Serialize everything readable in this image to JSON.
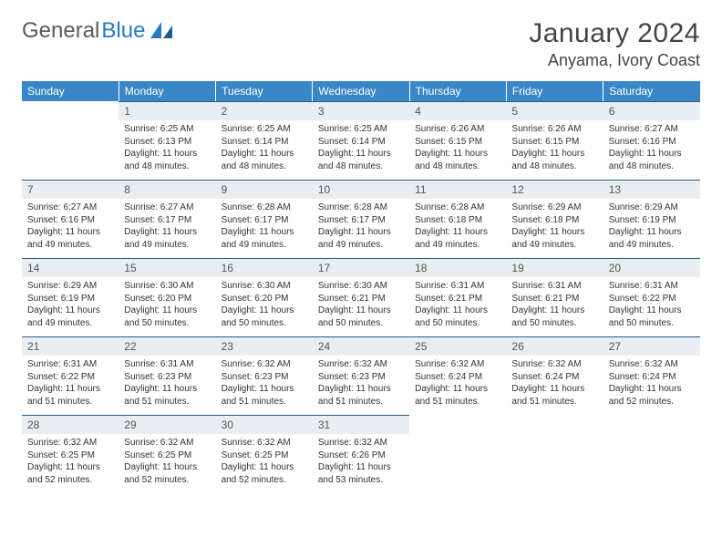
{
  "brand": {
    "word1": "General",
    "word2": "Blue"
  },
  "title": "January 2024",
  "location": "Anyama, Ivory Coast",
  "colors": {
    "header_bg": "#3a87c7",
    "daynum_bg": "#e9eef2",
    "daynum_border": "#2a5c8a",
    "brand_blue": "#2a7ac0"
  },
  "weekdays": [
    "Sunday",
    "Monday",
    "Tuesday",
    "Wednesday",
    "Thursday",
    "Friday",
    "Saturday"
  ],
  "weeks": [
    [
      {
        "n": "",
        "sr": "",
        "ss": "",
        "dl": ""
      },
      {
        "n": "1",
        "sr": "Sunrise: 6:25 AM",
        "ss": "Sunset: 6:13 PM",
        "dl": "Daylight: 11 hours and 48 minutes."
      },
      {
        "n": "2",
        "sr": "Sunrise: 6:25 AM",
        "ss": "Sunset: 6:14 PM",
        "dl": "Daylight: 11 hours and 48 minutes."
      },
      {
        "n": "3",
        "sr": "Sunrise: 6:25 AM",
        "ss": "Sunset: 6:14 PM",
        "dl": "Daylight: 11 hours and 48 minutes."
      },
      {
        "n": "4",
        "sr": "Sunrise: 6:26 AM",
        "ss": "Sunset: 6:15 PM",
        "dl": "Daylight: 11 hours and 48 minutes."
      },
      {
        "n": "5",
        "sr": "Sunrise: 6:26 AM",
        "ss": "Sunset: 6:15 PM",
        "dl": "Daylight: 11 hours and 48 minutes."
      },
      {
        "n": "6",
        "sr": "Sunrise: 6:27 AM",
        "ss": "Sunset: 6:16 PM",
        "dl": "Daylight: 11 hours and 48 minutes."
      }
    ],
    [
      {
        "n": "7",
        "sr": "Sunrise: 6:27 AM",
        "ss": "Sunset: 6:16 PM",
        "dl": "Daylight: 11 hours and 49 minutes."
      },
      {
        "n": "8",
        "sr": "Sunrise: 6:27 AM",
        "ss": "Sunset: 6:17 PM",
        "dl": "Daylight: 11 hours and 49 minutes."
      },
      {
        "n": "9",
        "sr": "Sunrise: 6:28 AM",
        "ss": "Sunset: 6:17 PM",
        "dl": "Daylight: 11 hours and 49 minutes."
      },
      {
        "n": "10",
        "sr": "Sunrise: 6:28 AM",
        "ss": "Sunset: 6:17 PM",
        "dl": "Daylight: 11 hours and 49 minutes."
      },
      {
        "n": "11",
        "sr": "Sunrise: 6:28 AM",
        "ss": "Sunset: 6:18 PM",
        "dl": "Daylight: 11 hours and 49 minutes."
      },
      {
        "n": "12",
        "sr": "Sunrise: 6:29 AM",
        "ss": "Sunset: 6:18 PM",
        "dl": "Daylight: 11 hours and 49 minutes."
      },
      {
        "n": "13",
        "sr": "Sunrise: 6:29 AM",
        "ss": "Sunset: 6:19 PM",
        "dl": "Daylight: 11 hours and 49 minutes."
      }
    ],
    [
      {
        "n": "14",
        "sr": "Sunrise: 6:29 AM",
        "ss": "Sunset: 6:19 PM",
        "dl": "Daylight: 11 hours and 49 minutes."
      },
      {
        "n": "15",
        "sr": "Sunrise: 6:30 AM",
        "ss": "Sunset: 6:20 PM",
        "dl": "Daylight: 11 hours and 50 minutes."
      },
      {
        "n": "16",
        "sr": "Sunrise: 6:30 AM",
        "ss": "Sunset: 6:20 PM",
        "dl": "Daylight: 11 hours and 50 minutes."
      },
      {
        "n": "17",
        "sr": "Sunrise: 6:30 AM",
        "ss": "Sunset: 6:21 PM",
        "dl": "Daylight: 11 hours and 50 minutes."
      },
      {
        "n": "18",
        "sr": "Sunrise: 6:31 AM",
        "ss": "Sunset: 6:21 PM",
        "dl": "Daylight: 11 hours and 50 minutes."
      },
      {
        "n": "19",
        "sr": "Sunrise: 6:31 AM",
        "ss": "Sunset: 6:21 PM",
        "dl": "Daylight: 11 hours and 50 minutes."
      },
      {
        "n": "20",
        "sr": "Sunrise: 6:31 AM",
        "ss": "Sunset: 6:22 PM",
        "dl": "Daylight: 11 hours and 50 minutes."
      }
    ],
    [
      {
        "n": "21",
        "sr": "Sunrise: 6:31 AM",
        "ss": "Sunset: 6:22 PM",
        "dl": "Daylight: 11 hours and 51 minutes."
      },
      {
        "n": "22",
        "sr": "Sunrise: 6:31 AM",
        "ss": "Sunset: 6:23 PM",
        "dl": "Daylight: 11 hours and 51 minutes."
      },
      {
        "n": "23",
        "sr": "Sunrise: 6:32 AM",
        "ss": "Sunset: 6:23 PM",
        "dl": "Daylight: 11 hours and 51 minutes."
      },
      {
        "n": "24",
        "sr": "Sunrise: 6:32 AM",
        "ss": "Sunset: 6:23 PM",
        "dl": "Daylight: 11 hours and 51 minutes."
      },
      {
        "n": "25",
        "sr": "Sunrise: 6:32 AM",
        "ss": "Sunset: 6:24 PM",
        "dl": "Daylight: 11 hours and 51 minutes."
      },
      {
        "n": "26",
        "sr": "Sunrise: 6:32 AM",
        "ss": "Sunset: 6:24 PM",
        "dl": "Daylight: 11 hours and 51 minutes."
      },
      {
        "n": "27",
        "sr": "Sunrise: 6:32 AM",
        "ss": "Sunset: 6:24 PM",
        "dl": "Daylight: 11 hours and 52 minutes."
      }
    ],
    [
      {
        "n": "28",
        "sr": "Sunrise: 6:32 AM",
        "ss": "Sunset: 6:25 PM",
        "dl": "Daylight: 11 hours and 52 minutes."
      },
      {
        "n": "29",
        "sr": "Sunrise: 6:32 AM",
        "ss": "Sunset: 6:25 PM",
        "dl": "Daylight: 11 hours and 52 minutes."
      },
      {
        "n": "30",
        "sr": "Sunrise: 6:32 AM",
        "ss": "Sunset: 6:25 PM",
        "dl": "Daylight: 11 hours and 52 minutes."
      },
      {
        "n": "31",
        "sr": "Sunrise: 6:32 AM",
        "ss": "Sunset: 6:26 PM",
        "dl": "Daylight: 11 hours and 53 minutes."
      },
      {
        "n": "",
        "sr": "",
        "ss": "",
        "dl": ""
      },
      {
        "n": "",
        "sr": "",
        "ss": "",
        "dl": ""
      },
      {
        "n": "",
        "sr": "",
        "ss": "",
        "dl": ""
      }
    ]
  ]
}
